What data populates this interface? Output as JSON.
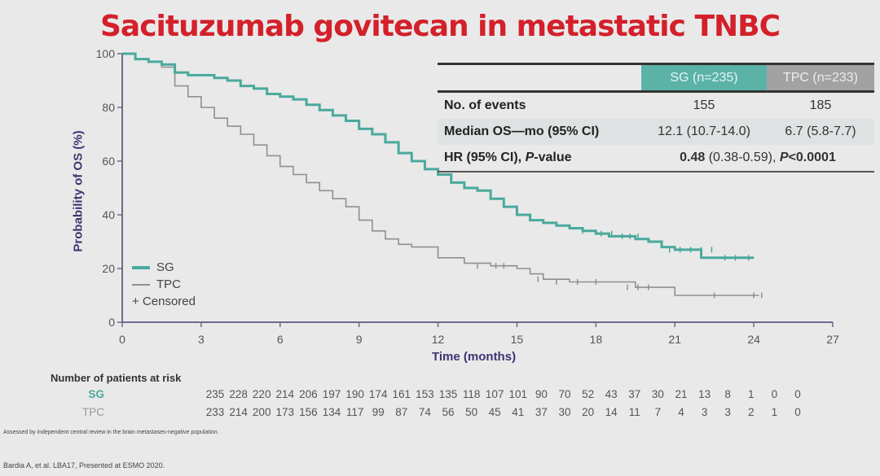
{
  "title": "Sacituzumab govitecan in metastatic TNBC",
  "colors": {
    "sg": "#4aa99c",
    "tpc": "#8f8f8f",
    "axis": "#6b6a8e",
    "title": "#d3202a"
  },
  "summary_table": {
    "headers": [
      "SG (n=235)",
      "TPC (n=233)"
    ],
    "rows": [
      {
        "label": "No. of events",
        "sg": "155",
        "tpc": "185"
      },
      {
        "label": "Median OS—mo (95% CI)",
        "sg": "12.1 (10.7-14.0)",
        "tpc": "6.7 (5.8-7.7)"
      }
    ],
    "hr_row": {
      "label_a": "HR (95% CI), ",
      "label_p": "P",
      "label_b": "-value",
      "hr": "0.48",
      "ci": " (0.38-0.59), ",
      "p_label": "P",
      "p_value": "<0.0001"
    }
  },
  "legend": {
    "sg": "SG",
    "tpc": "TPC",
    "censored": "+ Censored"
  },
  "chart_data": {
    "type": "line",
    "title": "",
    "xlabel": "Time (months)",
    "ylabel": "Probability of OS (%)",
    "xlim": [
      0,
      27
    ],
    "ylim": [
      0,
      100
    ],
    "xticks": [
      "0",
      "3",
      "6",
      "9",
      "12",
      "15",
      "18",
      "21",
      "24",
      "27"
    ],
    "yticks": [
      "0",
      "20",
      "40",
      "60",
      "80",
      "100"
    ],
    "grid": false,
    "legend_position": "bottom-left",
    "series": [
      {
        "name": "SG",
        "step": true,
        "x": [
          0,
          0.5,
          1,
          1.5,
          2,
          2.5,
          3,
          3.5,
          4,
          4.5,
          5,
          5.5,
          6,
          6.5,
          7,
          7.5,
          8,
          8.5,
          9,
          9.5,
          10,
          10.5,
          11,
          11.5,
          12,
          12.5,
          13,
          13.5,
          14,
          14.5,
          15,
          15.5,
          16,
          16.5,
          17,
          17.5,
          18,
          18.5,
          19,
          19.5,
          20,
          20.5,
          21,
          21.5,
          22,
          23,
          24
        ],
        "y": [
          100,
          98,
          97,
          96,
          93,
          92,
          92,
          91,
          90,
          88,
          87,
          85,
          84,
          83,
          81,
          79,
          77,
          75,
          72,
          70,
          67,
          63,
          60,
          57,
          55,
          52,
          50,
          49,
          46,
          43,
          40,
          38,
          37,
          36,
          35,
          34,
          33,
          32,
          32,
          31,
          30,
          28,
          27,
          27,
          24,
          24,
          24
        ]
      },
      {
        "name": "TPC",
        "step": true,
        "x": [
          0,
          0.5,
          1,
          1.5,
          2,
          2.5,
          3,
          3.5,
          4,
          4.5,
          5,
          5.5,
          6,
          6.5,
          7,
          7.5,
          8,
          8.5,
          9,
          9.5,
          10,
          10.5,
          11,
          12,
          13,
          14,
          15,
          15.5,
          16,
          17,
          18,
          19,
          19.5,
          20.5,
          21,
          22,
          23,
          24.2
        ],
        "y": [
          100,
          98,
          97,
          95,
          88,
          84,
          80,
          76,
          73,
          70,
          66,
          62,
          58,
          55,
          52,
          49,
          46,
          43,
          38,
          34,
          31,
          29,
          28,
          24,
          22,
          21,
          20,
          18,
          16,
          15,
          15,
          15,
          13,
          13,
          10,
          10,
          10,
          10
        ]
      }
    ],
    "censored": {
      "SG": {
        "x": [
          17.5,
          18.2,
          18.6,
          19,
          19.3,
          19.6,
          20.8,
          21.2,
          21.6,
          22,
          22.4,
          22.9,
          23.3,
          23.8
        ],
        "y": [
          34,
          33,
          33,
          32,
          32,
          32,
          27,
          27,
          27,
          27,
          27,
          24,
          24,
          24
        ]
      },
      "TPC": {
        "x": [
          13.5,
          14.2,
          14.5,
          15.8,
          16.5,
          17.3,
          18,
          19.2,
          19.6,
          20,
          22.5,
          24,
          24.3
        ],
        "y": [
          21,
          21,
          21,
          16,
          15,
          15,
          15,
          13,
          13,
          13,
          10,
          10,
          10
        ]
      }
    },
    "at_risk": {
      "title": "Number of patients at risk",
      "times": [
        0,
        1,
        2,
        3,
        4,
        5,
        6,
        7,
        8,
        9,
        10,
        11,
        12,
        13,
        14,
        15,
        16,
        17,
        18,
        19,
        20,
        21,
        22,
        23,
        24,
        25
      ],
      "rows": [
        {
          "name": "SG",
          "values": [
            "235",
            "228",
            "220",
            "214",
            "206",
            "197",
            "190",
            "174",
            "161",
            "153",
            "135",
            "118",
            "107",
            "101",
            "90",
            "70",
            "52",
            "43",
            "37",
            "30",
            "21",
            "13",
            "8",
            "1",
            "0",
            "0"
          ]
        },
        {
          "name": "TPC",
          "values": [
            "233",
            "214",
            "200",
            "173",
            "156",
            "134",
            "117",
            "99",
            "87",
            "74",
            "56",
            "50",
            "45",
            "41",
            "37",
            "30",
            "20",
            "14",
            "11",
            "7",
            "4",
            "3",
            "3",
            "2",
            "1",
            "0"
          ]
        }
      ]
    }
  },
  "footnote": "Assessed by independent central review in the brain metastases-negative population.",
  "citation": "Bardia A, et al. LBA17, Presented at ESMO 2020."
}
